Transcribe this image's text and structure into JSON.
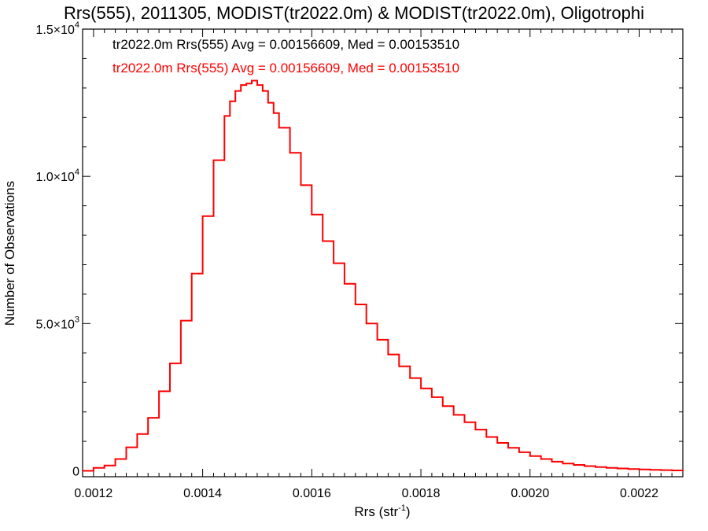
{
  "chart_data": {
    "type": "line",
    "title": "Rrs(555), 2011305, MODIST(tr2022.0m) & MODIST(tr2022.0m), Oligotrophi",
    "xlabel": "Rrs (str",
    "xlabel_sup": "-1",
    "xlabel_end": ")",
    "ylabel": "Number of Observations",
    "xlim": [
      0.00118,
      0.00228
    ],
    "ylim": [
      -200,
      15000
    ],
    "x_ticks": [
      {
        "value": 0.0012,
        "label": "0.0012"
      },
      {
        "value": 0.0014,
        "label": "0.0014"
      },
      {
        "value": 0.0016,
        "label": "0.0016"
      },
      {
        "value": 0.0018,
        "label": "0.0018"
      },
      {
        "value": 0.002,
        "label": "0.0020"
      },
      {
        "value": 0.0022,
        "label": "0.0022"
      }
    ],
    "y_ticks": [
      {
        "value": 0,
        "label": "0",
        "exp": ""
      },
      {
        "value": 5000,
        "label": "5.0×10",
        "exp": "3"
      },
      {
        "value": 10000,
        "label": "1.0×10",
        "exp": "4"
      },
      {
        "value": 15000,
        "label": "1.5×10",
        "exp": "4"
      }
    ],
    "annotations": [
      {
        "text": "tr2022.0m Rrs(555) Avg = 0.00156609, Med = 0.00153510",
        "color": "#000000"
      },
      {
        "text": "tr2022.0m Rrs(555) Avg = 0.00156609, Med = 0.00153510",
        "color": "#ff0000"
      }
    ],
    "series": [
      {
        "color": "#ff0000",
        "x": [
          0.00118,
          0.0012,
          0.00122,
          0.00124,
          0.00126,
          0.00128,
          0.0013,
          0.00132,
          0.00134,
          0.00136,
          0.00138,
          0.0014,
          0.00142,
          0.00144,
          0.00145,
          0.00146,
          0.00147,
          0.00148,
          0.00149,
          0.0015,
          0.00151,
          0.00152,
          0.00153,
          0.00154,
          0.00156,
          0.00158,
          0.0016,
          0.00162,
          0.00164,
          0.00166,
          0.00168,
          0.0017,
          0.00172,
          0.00174,
          0.00176,
          0.00178,
          0.0018,
          0.00182,
          0.00184,
          0.00186,
          0.00188,
          0.0019,
          0.00192,
          0.00194,
          0.00196,
          0.00198,
          0.002,
          0.00202,
          0.00204,
          0.00206,
          0.00208,
          0.0021,
          0.00212,
          0.00214,
          0.00216,
          0.00218,
          0.0022,
          0.00222,
          0.00224,
          0.00226,
          0.00228
        ],
        "y": [
          0,
          100,
          180,
          400,
          800,
          1250,
          1800,
          2700,
          3650,
          5100,
          6700,
          8650,
          10550,
          12050,
          12550,
          12900,
          13100,
          13150,
          13250,
          13100,
          12900,
          12500,
          12150,
          11650,
          10800,
          9700,
          8700,
          7800,
          7050,
          6350,
          5650,
          5000,
          4450,
          3950,
          3550,
          3150,
          2800,
          2500,
          2200,
          1900,
          1650,
          1400,
          1150,
          950,
          780,
          630,
          500,
          400,
          310,
          250,
          200,
          160,
          125,
          100,
          80,
          60,
          45,
          35,
          25,
          15,
          8
        ]
      }
    ],
    "colors": {
      "axis": "#000000",
      "series": "#ff0000"
    }
  }
}
